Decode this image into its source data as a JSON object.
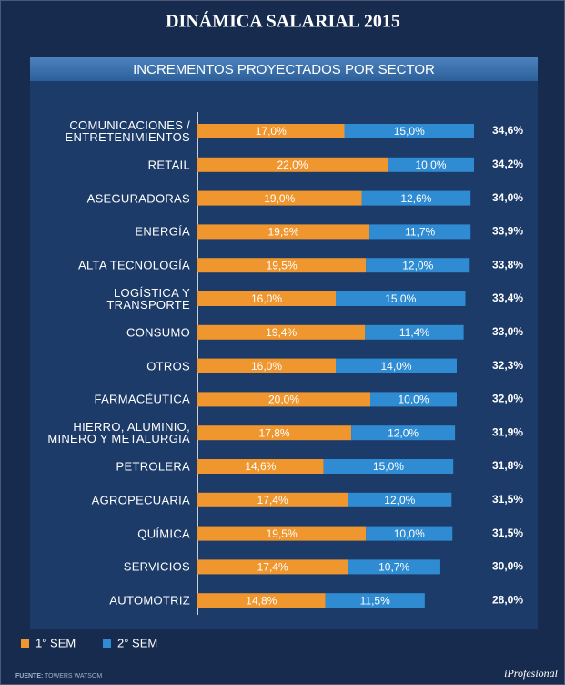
{
  "chart_data": {
    "type": "stacked-bar-horizontal",
    "title": "DINÁMICA SALARIAL 2015",
    "subtitle": "INCREMENTOS PROYECTADOS POR SECTOR",
    "categories": [
      "COMUNICACIONES /\nENTRETENIMIENTOS",
      "RETAIL",
      "ASEGURADORAS",
      "ENERGÍA",
      "ALTA TECNOLOGÍA",
      "LOGÍSTICA Y\nTRANSPORTE",
      "CONSUMO",
      "OTROS",
      "FARMACÉUTICA",
      "HIERRO, ALUMINIO,\nMINERO Y METALURGIA",
      "PETROLERA",
      "AGROPECUARIA",
      "QUÍMICA",
      "SERVICIOS",
      "AUTOMOTRIZ"
    ],
    "series": [
      {
        "name": "1° SEM",
        "color": "#f0962e",
        "values": [
          17.0,
          22.0,
          19.0,
          19.9,
          19.5,
          16.0,
          19.4,
          16.0,
          20.0,
          17.8,
          14.6,
          17.4,
          19.5,
          17.4,
          14.8
        ],
        "value_labels": [
          "17,0%",
          "22,0%",
          "19,0%",
          "19,9%",
          "19,5%",
          "16,0%",
          "19,4%",
          "16,0%",
          "20,0%",
          "17,8%",
          "14,6%",
          "17,4%",
          "19,5%",
          "17,4%",
          "14,8%"
        ]
      },
      {
        "name": "2° SEM",
        "color": "#2f8bd2",
        "values": [
          15.0,
          10.0,
          12.6,
          11.7,
          12.0,
          15.0,
          11.4,
          14.0,
          10.0,
          12.0,
          15.0,
          12.0,
          10.0,
          10.7,
          11.5
        ],
        "value_labels": [
          "15,0%",
          "10,0%",
          "12,6%",
          "11,7%",
          "12,0%",
          "15,0%",
          "11,4%",
          "14,0%",
          "10,0%",
          "12,0%",
          "15,0%",
          "12,0%",
          "10,0%",
          "10,7%",
          "11,5%"
        ]
      }
    ],
    "totals": {
      "values": [
        34.6,
        34.2,
        34.0,
        33.9,
        33.8,
        33.4,
        33.0,
        32.3,
        32.0,
        31.9,
        31.8,
        31.5,
        31.5,
        30.0,
        28.0
      ],
      "value_labels": [
        "34,6%",
        "34,2%",
        "34,0%",
        "33,9%",
        "33,8%",
        "33,4%",
        "33,0%",
        "32,3%",
        "32,0%",
        "31,9%",
        "31,8%",
        "31,5%",
        "31,5%",
        "30,0%",
        "28,0%"
      ]
    },
    "xlim": [
      0,
      40
    ],
    "source": "FUENTE:",
    "source_name": "TOWERS WATSOM",
    "brand": "iProfesional"
  }
}
